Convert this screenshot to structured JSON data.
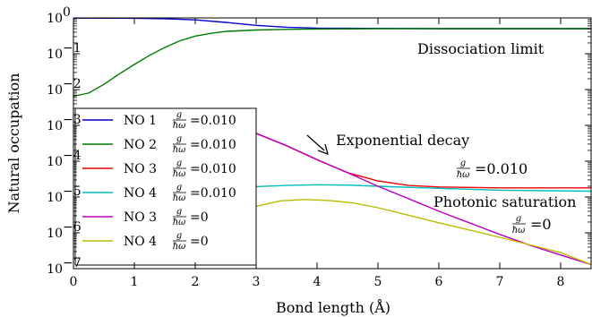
{
  "chart_data": {
    "type": "line",
    "xlabel": "Bond length (Å)",
    "ylabel": "Natural occupation",
    "xlim": [
      0,
      8.5
    ],
    "ylim": [
      1e-07,
      1
    ],
    "yscale": "log",
    "x_ticks": [
      "0",
      "1",
      "2",
      "3",
      "4",
      "5",
      "6",
      "7",
      "8"
    ],
    "y_ticks": [
      {
        "base": "10",
        "exp": "0"
      },
      {
        "base": "10",
        "exp": "−1"
      },
      {
        "base": "10",
        "exp": "−2"
      },
      {
        "base": "10",
        "exp": "−3"
      },
      {
        "base": "10",
        "exp": "−4"
      },
      {
        "base": "10",
        "exp": "−5"
      },
      {
        "base": "10",
        "exp": "−6"
      },
      {
        "base": "10",
        "exp": "−7"
      }
    ],
    "legend_position": "bottom-left",
    "series": [
      {
        "name": "NO 1",
        "coupling": "=0.010",
        "color": "#0000cc",
        "x": [
          0,
          1,
          1.5,
          2,
          2.5,
          3,
          3.5,
          4,
          5,
          6,
          7,
          8.5
        ],
        "y": [
          0.99,
          0.98,
          0.95,
          0.88,
          0.75,
          0.62,
          0.55,
          0.52,
          0.51,
          0.5,
          0.5,
          0.5
        ]
      },
      {
        "name": "NO 2",
        "coupling": "=0.010",
        "color": "#007700",
        "x": [
          0,
          0.25,
          0.5,
          0.75,
          1,
          1.25,
          1.5,
          1.75,
          2,
          2.25,
          2.5,
          3,
          3.5,
          4,
          5,
          8.5
        ],
        "y": [
          0.0065,
          0.008,
          0.014,
          0.027,
          0.05,
          0.09,
          0.15,
          0.23,
          0.31,
          0.37,
          0.42,
          0.46,
          0.48,
          0.49,
          0.5,
          0.5
        ]
      },
      {
        "name": "NO 3",
        "coupling": "=0.010",
        "color": "#ee0000",
        "x": [
          2.9,
          3.5,
          4,
          4.5,
          5,
          5.5,
          6,
          7,
          8.5
        ],
        "y": [
          0.0007,
          0.00027,
          0.00011,
          4.8e-05,
          2.8e-05,
          2.1e-05,
          1.9e-05,
          1.8e-05,
          1.8e-05
        ]
      },
      {
        "name": "NO 4",
        "coupling": "=0.010",
        "color": "#00bbbb",
        "x": [
          2.2,
          3,
          3.5,
          4,
          4.5,
          5,
          6,
          7,
          8.5
        ],
        "y": [
          1.7e-05,
          1.95e-05,
          2.1e-05,
          2.2e-05,
          2.15e-05,
          2e-05,
          1.75e-05,
          1.55e-05,
          1.45e-05
        ]
      },
      {
        "name": "NO 3",
        "coupling": "=0",
        "color": "#bb00bb",
        "x": [
          2.9,
          3.5,
          4,
          4.5,
          5,
          5.5,
          6,
          6.5,
          7,
          7.5,
          8,
          8.5
        ],
        "y": [
          0.0007,
          0.00027,
          0.00011,
          4.8e-05,
          2e-05,
          9e-06,
          4e-06,
          1.9e-06,
          9e-07,
          4.5e-07,
          2.4e-07,
          1.3e-07
        ]
      },
      {
        "name": "NO 4",
        "coupling": "=0",
        "color": "#bbbb00",
        "x": [
          2.8,
          3,
          3.4,
          3.8,
          4.2,
          4.6,
          5,
          5.5,
          6,
          6.5,
          7,
          7.5,
          8,
          8.5
        ],
        "y": [
          3.5e-06,
          5.5e-06,
          7.8e-06,
          8.5e-06,
          8e-06,
          6.8e-06,
          5e-06,
          3.1e-06,
          1.9e-06,
          1.2e-06,
          7.5e-07,
          4.6e-07,
          2.8e-07,
          1.3e-07
        ]
      }
    ],
    "annotations": {
      "dissociation": "Dissociation limit",
      "exponential": "Exponential decay",
      "coupling_010": "=0.010",
      "photonic": "Photonic saturation",
      "coupling_0": "=0"
    },
    "frac_num": "g",
    "frac_den": "ħω"
  }
}
